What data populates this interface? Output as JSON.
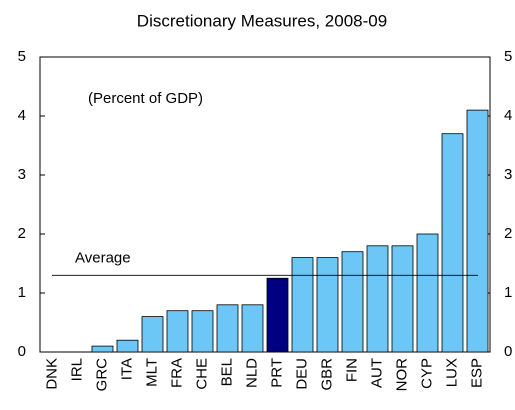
{
  "chart_data": {
    "type": "bar",
    "title": "Discretionary Measures, 2008-09",
    "annotation": "(Percent of GDP)",
    "categories": [
      "DNK",
      "IRL",
      "GRC",
      "ITA",
      "MLT",
      "FRA",
      "CHE",
      "BEL",
      "NLD",
      "PRT",
      "DEU",
      "GBR",
      "FIN",
      "AUT",
      "NOR",
      "CYP",
      "LUX",
      "ESP"
    ],
    "values": [
      0,
      0,
      0.1,
      0.2,
      0.6,
      0.7,
      0.7,
      0.8,
      0.8,
      1.25,
      1.6,
      1.6,
      1.7,
      1.8,
      1.8,
      2.0,
      3.7,
      4.1
    ],
    "colors": [
      "#6cc6f6",
      "#6cc6f6",
      "#6cc6f6",
      "#6cc6f6",
      "#6cc6f6",
      "#6cc6f6",
      "#6cc6f6",
      "#6cc6f6",
      "#6cc6f6",
      "#000080",
      "#6cc6f6",
      "#6cc6f6",
      "#6cc6f6",
      "#6cc6f6",
      "#6cc6f6",
      "#6cc6f6",
      "#6cc6f6",
      "#6cc6f6"
    ],
    "average": 1.3,
    "average_label": "Average",
    "ylim": [
      0,
      5
    ],
    "yticks": [
      0,
      1,
      2,
      3,
      4,
      5
    ],
    "y2lim": [
      0,
      5
    ],
    "y2ticks": [
      0,
      1,
      2,
      3,
      4,
      5
    ],
    "grid": false
  }
}
